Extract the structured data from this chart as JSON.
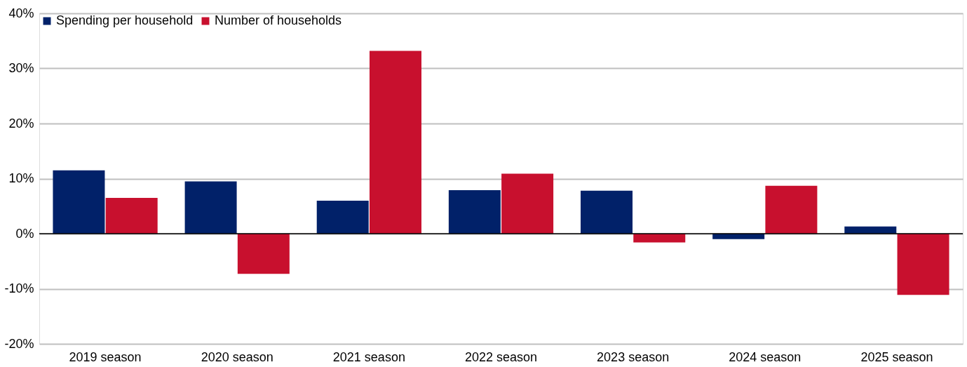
{
  "chart_data": {
    "type": "bar",
    "categories": [
      "2019 season",
      "2020 season",
      "2021 season",
      "2022 season",
      "2023 season",
      "2024 season",
      "2025 season"
    ],
    "series": [
      {
        "name": "Spending per household",
        "color": "#012169",
        "values": [
          11.5,
          9.5,
          6.0,
          7.9,
          7.8,
          -1.0,
          1.3
        ]
      },
      {
        "name": "Number of households",
        "color": "#c8102e",
        "values": [
          6.5,
          -7.3,
          33.2,
          10.9,
          -1.6,
          8.7,
          -11.1
        ]
      }
    ],
    "ylim": [
      -20,
      40
    ],
    "yticks": [
      {
        "value": -20,
        "label": "-20%"
      },
      {
        "value": -10,
        "label": "-10%"
      },
      {
        "value": 0,
        "label": "0%"
      },
      {
        "value": 10,
        "label": "10%"
      },
      {
        "value": 20,
        "label": "20%"
      },
      {
        "value": 30,
        "label": "30%"
      },
      {
        "value": 40,
        "label": "40%"
      }
    ],
    "ref_lines": [
      {
        "axis": "y",
        "value": 0,
        "color": "#000000"
      }
    ],
    "grid": "y",
    "legend": "top left"
  }
}
